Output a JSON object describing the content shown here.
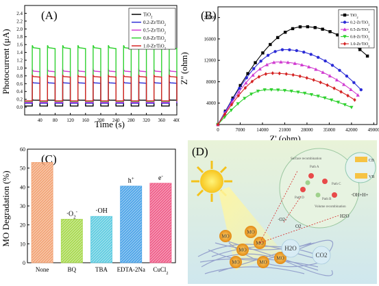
{
  "colors": {
    "TiO2": "#000000",
    "Zr02": "#2b2bd6",
    "Zr05": "#d03ad0",
    "Zr08": "#2fd12f",
    "Zr10": "#d42222"
  },
  "chart_data": [
    {
      "id": "A",
      "type": "line",
      "panel_label": "(A)",
      "xlabel": "Time (s)",
      "ylabel": "Photocurrent (μA)",
      "xlim": [
        0,
        400
      ],
      "ylim": [
        -0.2,
        2.6
      ],
      "xticks": [
        "40",
        "80",
        "120",
        "160",
        "200",
        "240",
        "280",
        "320",
        "360",
        "400"
      ],
      "yticks": [
        "0.0",
        "0.2",
        "0.4",
        "0.6",
        "0.8",
        "1.0",
        "1.2",
        "1.4",
        "1.6",
        "1.8",
        "2.0",
        "2.2",
        "2.4"
      ],
      "legend": [
        "TiO2",
        "0.2-Zr/TiO2",
        "0.5-Zr/TiO2",
        "0.8-Zr/TiO2",
        "1.0-Zr/TiO2"
      ],
      "on_intervals": [
        [
          20,
          40
        ],
        [
          60,
          80
        ],
        [
          100,
          120
        ],
        [
          140,
          160
        ],
        [
          180,
          200
        ],
        [
          220,
          240
        ],
        [
          260,
          280
        ],
        [
          300,
          320
        ],
        [
          340,
          360
        ],
        [
          380,
          400
        ]
      ],
      "series": [
        {
          "name": "TiO2",
          "color_key": "TiO2",
          "on": 0.18,
          "off": 0.03
        },
        {
          "name": "0.2-Zr/TiO2",
          "color_key": "Zr02",
          "on": 0.62,
          "off": 0.1
        },
        {
          "name": "0.5-Zr/TiO2",
          "color_key": "Zr05",
          "on": 0.92,
          "off": 0.12
        },
        {
          "name": "0.8-Zr/TiO2",
          "color_key": "Zr08",
          "on": 1.52,
          "off": 0.15
        },
        {
          "name": "1.0-Zr/TiO2",
          "color_key": "Zr10",
          "on": 0.78,
          "off": 0.16
        }
      ]
    },
    {
      "id": "B",
      "type": "scatter",
      "panel_label": "(B)",
      "xlabel": "Z' (ohm)",
      "ylabel": "Z'' (ohm)",
      "xlim": [
        0,
        50000
      ],
      "ylim": [
        0,
        22000
      ],
      "xticks": [
        "0",
        "7000",
        "14000",
        "21000",
        "28000",
        "35000",
        "42000",
        "49000"
      ],
      "yticks": [
        "4000",
        "8000",
        "12000",
        "16000",
        "20000"
      ],
      "legend": [
        "TiO2",
        "0.2-Zr/TiO2",
        "0.5-Zr/TiO2",
        "0.8-Zr/TiO2",
        "1.0-Zr/TiO2"
      ],
      "series": [
        {
          "name": "TiO2",
          "color_key": "TiO2",
          "marker": "square",
          "xmax": 47000,
          "peak_x": 27000,
          "peak_y": 18300,
          "end_y": 12800
        },
        {
          "name": "0.2-Zr/TiO2",
          "color_key": "Zr02",
          "marker": "circle",
          "xmax": 45000,
          "peak_x": 21000,
          "peak_y": 14000,
          "end_y": 6500
        },
        {
          "name": "0.5-Zr/TiO2",
          "color_key": "Zr05",
          "marker": "triangle",
          "xmax": 44000,
          "peak_x": 19000,
          "peak_y": 11700,
          "end_y": 5500
        },
        {
          "name": "0.8-Zr/TiO2",
          "color_key": "Zr08",
          "marker": "triangle-down",
          "xmax": 42000,
          "peak_x": 15500,
          "peak_y": 6500,
          "end_y": 3200
        },
        {
          "name": "1.0-Zr/TiO2",
          "color_key": "Zr10",
          "marker": "diamond",
          "xmax": 43000,
          "peak_x": 17000,
          "peak_y": 9600,
          "end_y": 4600
        }
      ]
    },
    {
      "id": "C",
      "type": "bar",
      "panel_label": "(C)",
      "xlabel": "",
      "ylabel": "MO Degradation (%)",
      "ylim": [
        0,
        60
      ],
      "yticks": [
        "0",
        "10",
        "20",
        "30",
        "40",
        "50",
        "60"
      ],
      "categories": [
        "None",
        "BQ",
        "TBA",
        "EDTA-2Na",
        "CuCl2"
      ],
      "values": [
        53,
        23,
        24.5,
        40.5,
        42
      ],
      "bar_labels": [
        "",
        "·O2-",
        "·OH",
        "h+",
        "e-"
      ],
      "colors": [
        "#f2a273",
        "#a6d84b",
        "#5ccbe0",
        "#4aa3e8",
        "#ef5a86"
      ]
    }
  ],
  "diagram_D": {
    "panel_label": "(D)",
    "labels": {
      "mo": "MO",
      "h2o": "H2O",
      "co2": "CO2",
      "surface_recombination": "Surface recombination",
      "volume_recombination": "Volume recombination",
      "path_a": "Path A",
      "path_b": "Path B",
      "path_c": "Path C",
      "path_d": "Path D",
      "cb": "CB",
      "vb": "VB",
      "o2_radical": "·O2-",
      "o2": "O2",
      "oh_radical": "·OH+H+",
      "h2o_small": "H2O"
    }
  }
}
